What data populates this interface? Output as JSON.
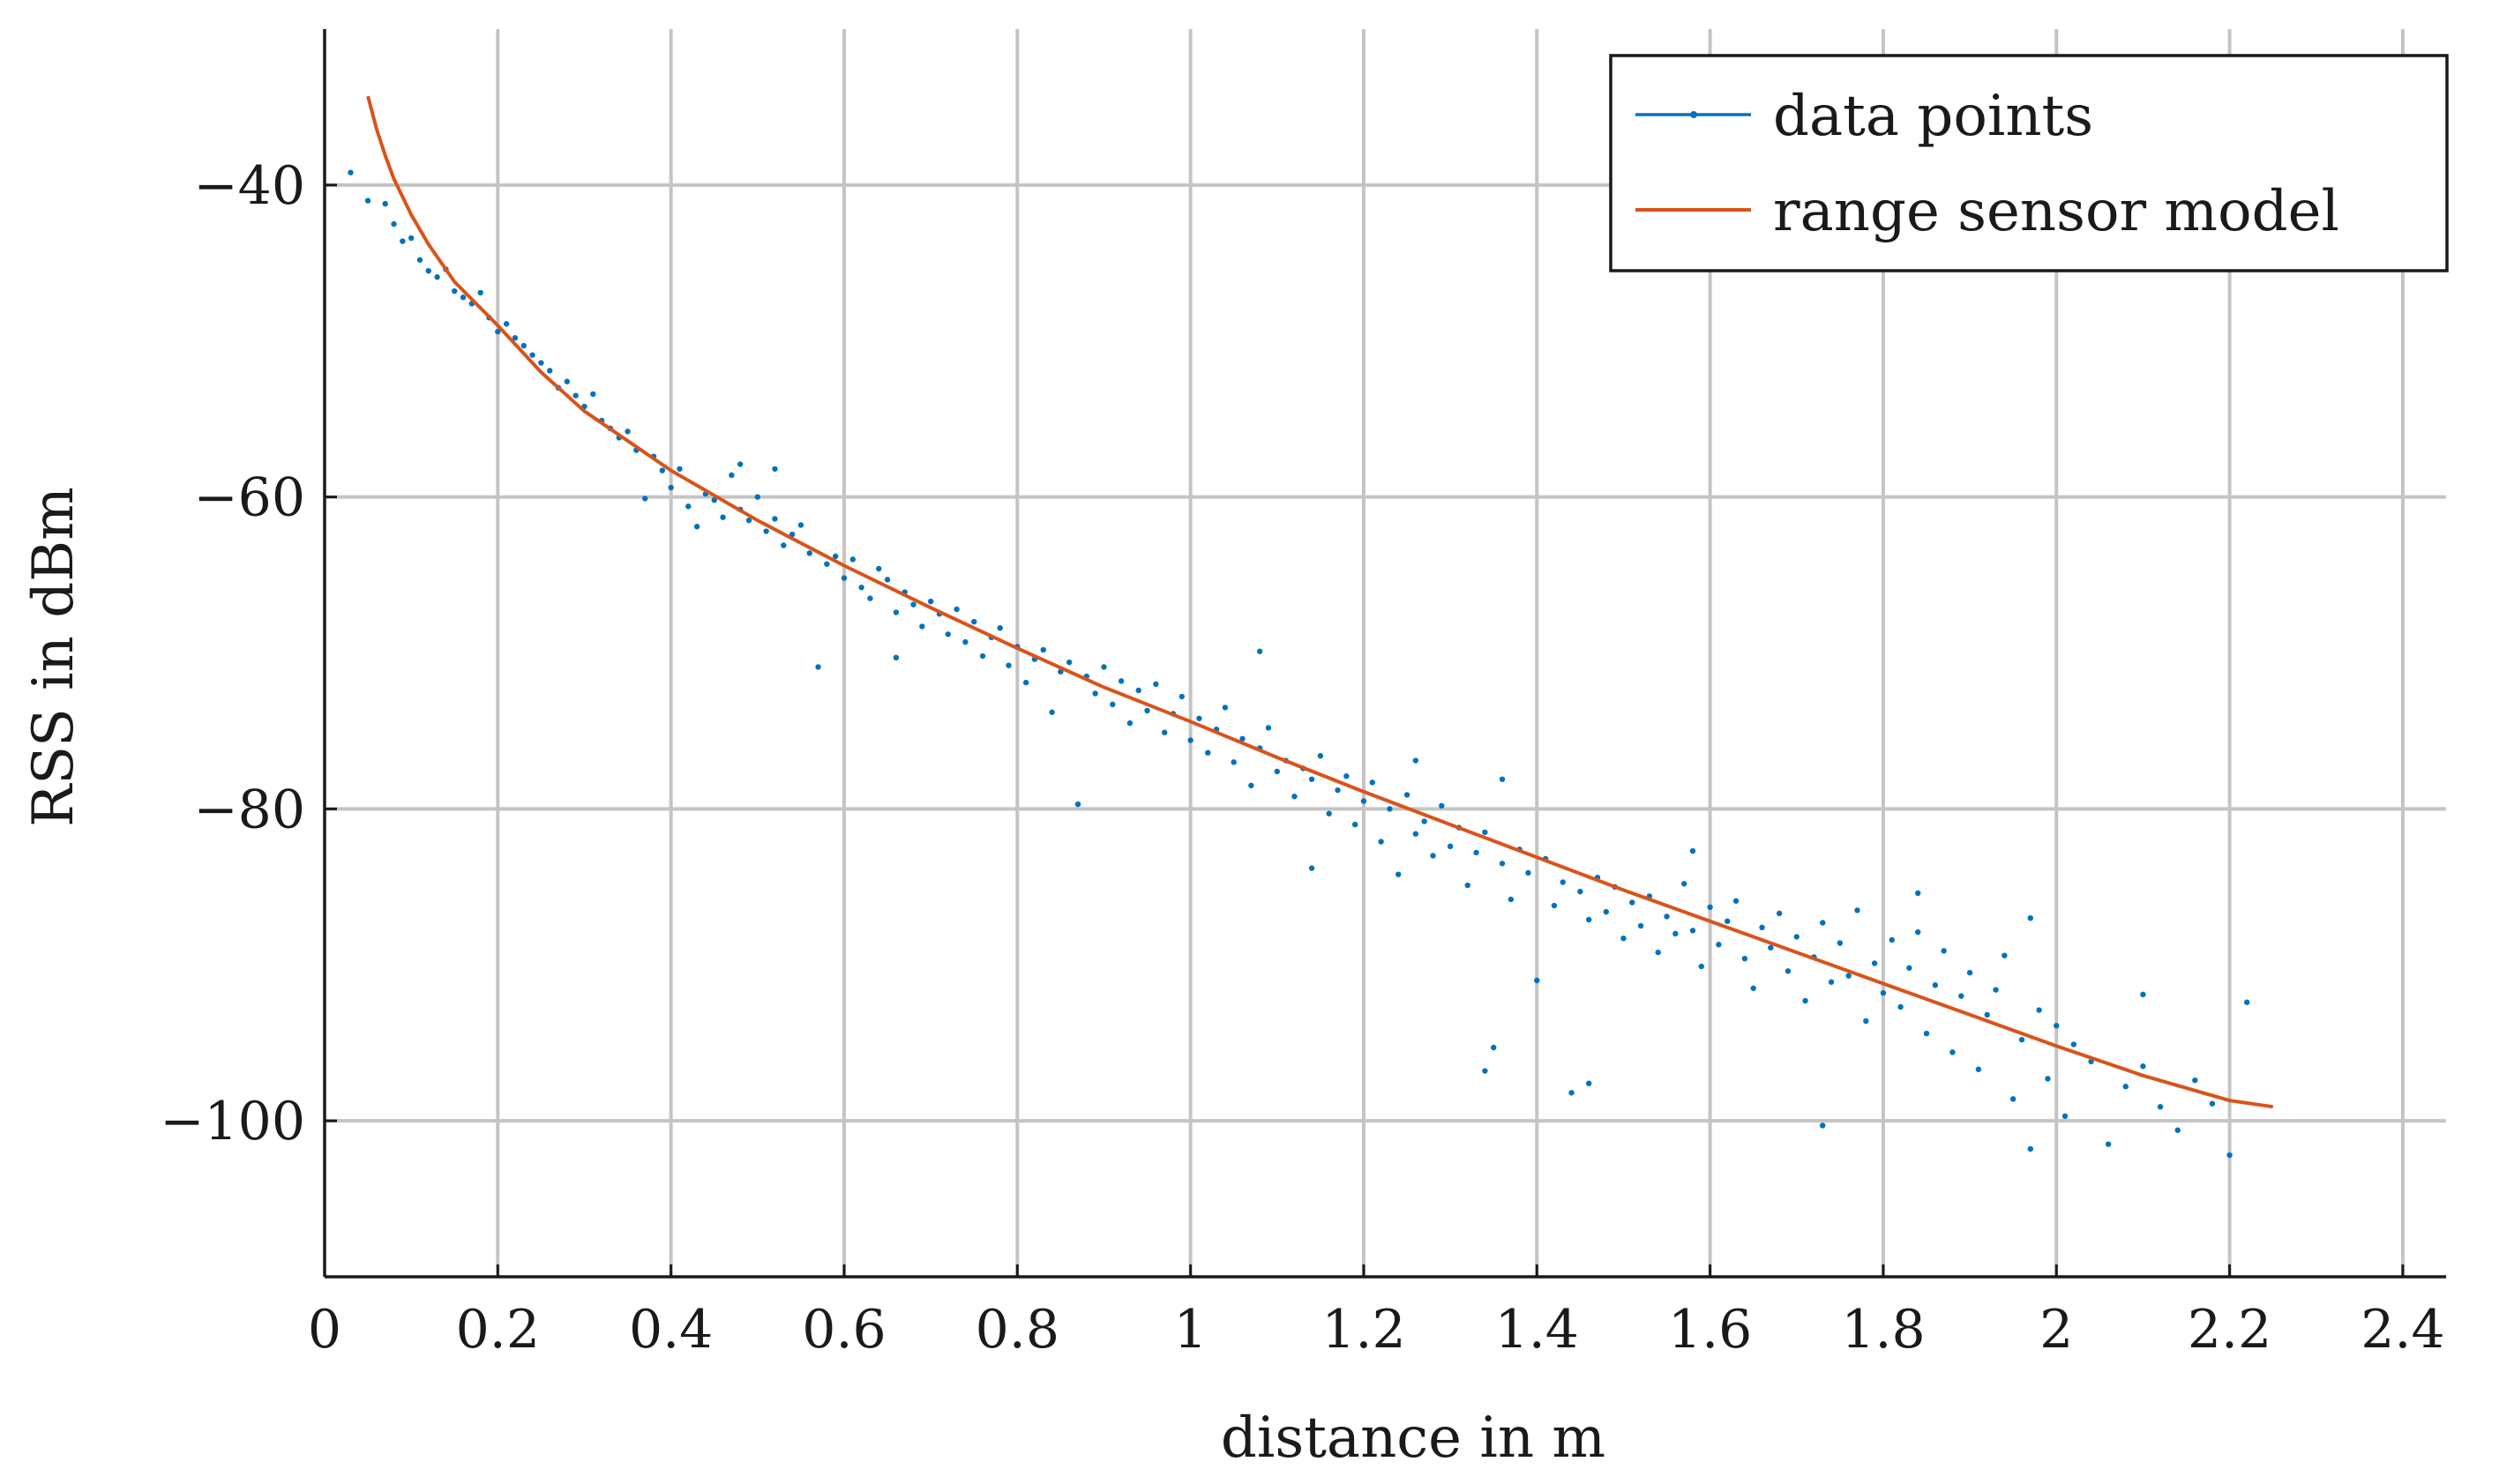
{
  "chart_data": {
    "type": "scatter",
    "title": "",
    "xlabel": "distance in m",
    "ylabel": "RSS in dBm",
    "xlim": [
      0,
      2.45
    ],
    "ylim": [
      -110,
      -30
    ],
    "x_ticks": [
      0,
      0.2,
      0.4,
      0.6,
      0.8,
      1,
      1.2,
      1.4,
      1.6,
      1.8,
      2,
      2.2,
      2.4
    ],
    "x_tick_labels": [
      "0",
      "0.2",
      "0.4",
      "0.6",
      "0.8",
      "1",
      "1.2",
      "1.4",
      "1.6",
      "1.8",
      "2",
      "2.2",
      "2.4"
    ],
    "y_ticks": [
      -40,
      -60,
      -80,
      -100
    ],
    "y_tick_labels": [
      "−40",
      "−60",
      "−80",
      "−100"
    ],
    "grid": true,
    "legend_position": "top-right",
    "series": [
      {
        "name": "data points",
        "type": "scatter",
        "color": "#0072BD",
        "points": [
          [
            0.03,
            -39.2
          ],
          [
            0.05,
            -41.0
          ],
          [
            0.07,
            -41.2
          ],
          [
            0.08,
            -42.5
          ],
          [
            0.09,
            -43.6
          ],
          [
            0.1,
            -43.4
          ],
          [
            0.11,
            -44.8
          ],
          [
            0.12,
            -45.5
          ],
          [
            0.13,
            -45.9
          ],
          [
            0.14,
            -45.4
          ],
          [
            0.15,
            -46.8
          ],
          [
            0.16,
            -47.2
          ],
          [
            0.17,
            -47.6
          ],
          [
            0.18,
            -46.9
          ],
          [
            0.19,
            -48.5
          ],
          [
            0.2,
            -49.4
          ],
          [
            0.21,
            -48.9
          ],
          [
            0.22,
            -49.8
          ],
          [
            0.23,
            -50.3
          ],
          [
            0.24,
            -50.9
          ],
          [
            0.25,
            -51.4
          ],
          [
            0.26,
            -51.9
          ],
          [
            0.27,
            -53.0
          ],
          [
            0.28,
            -52.6
          ],
          [
            0.29,
            -53.5
          ],
          [
            0.3,
            -54.2
          ],
          [
            0.31,
            -53.4
          ],
          [
            0.32,
            -55.1
          ],
          [
            0.33,
            -55.6
          ],
          [
            0.34,
            -56.2
          ],
          [
            0.35,
            -55.8
          ],
          [
            0.36,
            -57.0
          ],
          [
            0.37,
            -60.1
          ],
          [
            0.38,
            -57.4
          ],
          [
            0.39,
            -58.3
          ],
          [
            0.4,
            -59.4
          ],
          [
            0.41,
            -58.2
          ],
          [
            0.42,
            -60.6
          ],
          [
            0.43,
            -61.9
          ],
          [
            0.44,
            -59.8
          ],
          [
            0.45,
            -60.2
          ],
          [
            0.46,
            -61.3
          ],
          [
            0.47,
            -58.6
          ],
          [
            0.48,
            -60.8
          ],
          [
            0.49,
            -61.5
          ],
          [
            0.5,
            -60.0
          ],
          [
            0.51,
            -62.2
          ],
          [
            0.52,
            -61.4
          ],
          [
            0.53,
            -63.1
          ],
          [
            0.54,
            -62.4
          ],
          [
            0.55,
            -61.8
          ],
          [
            0.56,
            -63.6
          ],
          [
            0.57,
            -70.9
          ],
          [
            0.58,
            -64.3
          ],
          [
            0.59,
            -63.8
          ],
          [
            0.6,
            -65.2
          ],
          [
            0.61,
            -64.0
          ],
          [
            0.62,
            -65.8
          ],
          [
            0.63,
            -66.5
          ],
          [
            0.64,
            -64.6
          ],
          [
            0.65,
            -65.3
          ],
          [
            0.66,
            -67.4
          ],
          [
            0.67,
            -66.1
          ],
          [
            0.68,
            -66.9
          ],
          [
            0.69,
            -68.3
          ],
          [
            0.7,
            -66.7
          ],
          [
            0.71,
            -67.5
          ],
          [
            0.72,
            -68.8
          ],
          [
            0.73,
            -67.2
          ],
          [
            0.74,
            -69.3
          ],
          [
            0.75,
            -68.0
          ],
          [
            0.76,
            -70.2
          ],
          [
            0.77,
            -69.0
          ],
          [
            0.78,
            -68.4
          ],
          [
            0.79,
            -70.8
          ],
          [
            0.8,
            -69.6
          ],
          [
            0.81,
            -71.9
          ],
          [
            0.82,
            -70.4
          ],
          [
            0.83,
            -69.8
          ],
          [
            0.84,
            -73.8
          ],
          [
            0.85,
            -71.2
          ],
          [
            0.86,
            -70.6
          ],
          [
            0.87,
            -79.7
          ],
          [
            0.88,
            -71.5
          ],
          [
            0.89,
            -72.6
          ],
          [
            0.9,
            -70.9
          ],
          [
            0.91,
            -73.3
          ],
          [
            0.92,
            -71.8
          ],
          [
            0.93,
            -74.5
          ],
          [
            0.94,
            -72.4
          ],
          [
            0.95,
            -73.7
          ],
          [
            0.96,
            -72.0
          ],
          [
            0.97,
            -75.1
          ],
          [
            0.98,
            -73.9
          ],
          [
            0.99,
            -72.8
          ],
          [
            1.0,
            -75.6
          ],
          [
            1.01,
            -74.2
          ],
          [
            1.02,
            -76.4
          ],
          [
            1.03,
            -74.9
          ],
          [
            1.04,
            -73.5
          ],
          [
            1.05,
            -77.0
          ],
          [
            1.06,
            -75.5
          ],
          [
            1.07,
            -78.5
          ],
          [
            1.08,
            -76.1
          ],
          [
            1.09,
            -74.8
          ],
          [
            1.1,
            -77.6
          ],
          [
            1.11,
            -76.9
          ],
          [
            1.12,
            -79.2
          ],
          [
            1.13,
            -77.4
          ],
          [
            1.14,
            -78.1
          ],
          [
            1.15,
            -76.6
          ],
          [
            1.16,
            -80.3
          ],
          [
            1.17,
            -78.8
          ],
          [
            1.18,
            -77.9
          ],
          [
            1.19,
            -81.0
          ],
          [
            1.2,
            -79.5
          ],
          [
            1.21,
            -78.3
          ],
          [
            1.22,
            -82.1
          ],
          [
            1.23,
            -80.0
          ],
          [
            1.24,
            -84.2
          ],
          [
            1.25,
            -79.1
          ],
          [
            1.26,
            -81.6
          ],
          [
            1.27,
            -80.8
          ],
          [
            1.28,
            -83.0
          ],
          [
            1.29,
            -79.8
          ],
          [
            1.3,
            -82.4
          ],
          [
            1.31,
            -81.2
          ],
          [
            1.32,
            -84.9
          ],
          [
            1.33,
            -82.8
          ],
          [
            1.34,
            -81.5
          ],
          [
            1.35,
            -95.3
          ],
          [
            1.36,
            -83.5
          ],
          [
            1.37,
            -85.8
          ],
          [
            1.38,
            -82.6
          ],
          [
            1.39,
            -84.1
          ],
          [
            1.4,
            -91.0
          ],
          [
            1.41,
            -83.2
          ],
          [
            1.42,
            -86.2
          ],
          [
            1.43,
            -84.7
          ],
          [
            1.44,
            -98.2
          ],
          [
            1.45,
            -85.3
          ],
          [
            1.46,
            -87.1
          ],
          [
            1.47,
            -84.4
          ],
          [
            1.48,
            -86.6
          ],
          [
            1.49,
            -85.0
          ],
          [
            1.5,
            -88.3
          ],
          [
            1.51,
            -86.0
          ],
          [
            1.52,
            -87.5
          ],
          [
            1.53,
            -85.6
          ],
          [
            1.54,
            -89.2
          ],
          [
            1.55,
            -86.9
          ],
          [
            1.56,
            -88.0
          ],
          [
            1.57,
            -84.8
          ],
          [
            1.58,
            -87.8
          ],
          [
            1.59,
            -90.1
          ],
          [
            1.6,
            -86.3
          ],
          [
            1.61,
            -88.7
          ],
          [
            1.62,
            -87.2
          ],
          [
            1.63,
            -85.9
          ],
          [
            1.64,
            -89.6
          ],
          [
            1.65,
            -91.5
          ],
          [
            1.66,
            -87.6
          ],
          [
            1.67,
            -88.9
          ],
          [
            1.68,
            -86.7
          ],
          [
            1.69,
            -90.4
          ],
          [
            1.7,
            -88.2
          ],
          [
            1.71,
            -92.3
          ],
          [
            1.72,
            -89.5
          ],
          [
            1.73,
            -87.3
          ],
          [
            1.74,
            -91.1
          ],
          [
            1.75,
            -88.6
          ],
          [
            1.76,
            -90.7
          ],
          [
            1.77,
            -86.5
          ],
          [
            1.78,
            -93.6
          ],
          [
            1.79,
            -89.9
          ],
          [
            1.8,
            -91.8
          ],
          [
            1.81,
            -88.4
          ],
          [
            1.82,
            -92.7
          ],
          [
            1.83,
            -90.2
          ],
          [
            1.84,
            -87.9
          ],
          [
            1.85,
            -94.4
          ],
          [
            1.86,
            -91.3
          ],
          [
            1.87,
            -89.1
          ],
          [
            1.88,
            -95.6
          ],
          [
            1.89,
            -92.0
          ],
          [
            1.9,
            -90.5
          ],
          [
            1.91,
            -96.7
          ],
          [
            1.92,
            -93.2
          ],
          [
            1.93,
            -91.6
          ],
          [
            1.94,
            -89.4
          ],
          [
            1.95,
            -98.6
          ],
          [
            1.96,
            -94.8
          ],
          [
            1.97,
            -101.8
          ],
          [
            1.98,
            -92.9
          ],
          [
            1.99,
            -97.3
          ],
          [
            2.0,
            -93.9
          ],
          [
            2.01,
            -99.7
          ],
          [
            2.02,
            -95.1
          ],
          [
            2.04,
            -96.2
          ],
          [
            2.06,
            -101.5
          ],
          [
            2.08,
            -97.8
          ],
          [
            2.1,
            -96.5
          ],
          [
            2.12,
            -99.1
          ],
          [
            2.14,
            -100.6
          ],
          [
            2.16,
            -97.4
          ],
          [
            2.18,
            -98.9
          ],
          [
            2.2,
            -102.2
          ],
          [
            2.22,
            -92.4
          ],
          [
            1.97,
            -87.0
          ],
          [
            1.73,
            -100.3
          ],
          [
            1.34,
            -96.8
          ],
          [
            1.46,
            -97.6
          ],
          [
            0.66,
            -70.3
          ],
          [
            0.52,
            -58.2
          ],
          [
            0.48,
            -57.9
          ],
          [
            1.08,
            -69.9
          ],
          [
            1.14,
            -83.8
          ],
          [
            1.26,
            -76.9
          ],
          [
            1.36,
            -78.1
          ],
          [
            1.58,
            -82.7
          ],
          [
            1.84,
            -85.4
          ],
          [
            2.1,
            -91.9
          ]
        ]
      },
      {
        "name": "range sensor model",
        "type": "line",
        "color": "#D95319",
        "points": [
          [
            0.05,
            -34.3
          ],
          [
            0.06,
            -36.4
          ],
          [
            0.07,
            -38.1
          ],
          [
            0.08,
            -39.6
          ],
          [
            0.1,
            -41.9
          ],
          [
            0.12,
            -43.8
          ],
          [
            0.15,
            -46.2
          ],
          [
            0.2,
            -49.0
          ],
          [
            0.25,
            -52.0
          ],
          [
            0.3,
            -54.5
          ],
          [
            0.4,
            -58.3
          ],
          [
            0.5,
            -61.5
          ],
          [
            0.6,
            -64.4
          ],
          [
            0.7,
            -67.1
          ],
          [
            0.8,
            -69.7
          ],
          [
            0.9,
            -72.2
          ],
          [
            1.0,
            -74.4
          ],
          [
            1.1,
            -76.7
          ],
          [
            1.2,
            -78.9
          ],
          [
            1.3,
            -81.0
          ],
          [
            1.4,
            -83.1
          ],
          [
            1.5,
            -85.2
          ],
          [
            1.6,
            -87.2
          ],
          [
            1.7,
            -89.2
          ],
          [
            1.8,
            -91.2
          ],
          [
            1.9,
            -93.2
          ],
          [
            2.0,
            -95.2
          ],
          [
            2.1,
            -97.1
          ],
          [
            2.2,
            -98.7
          ],
          [
            2.25,
            -99.1
          ]
        ]
      }
    ]
  }
}
